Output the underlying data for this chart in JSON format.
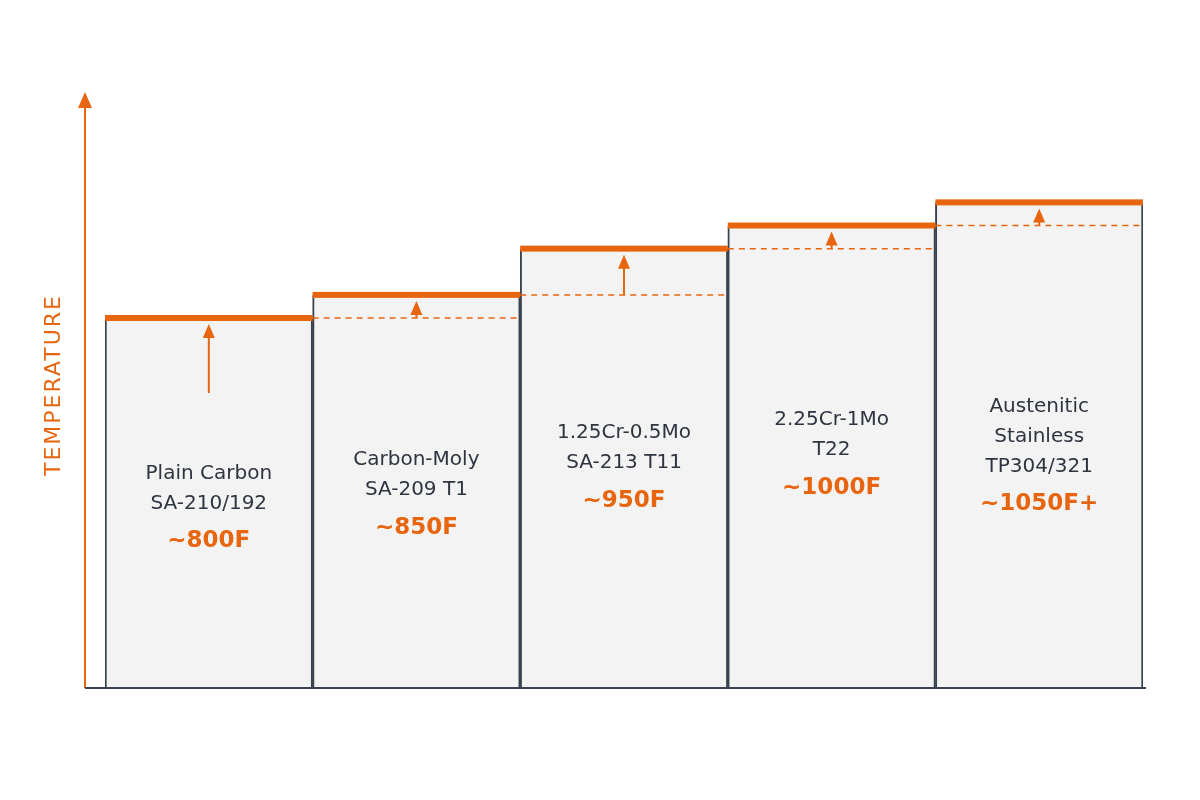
{
  "chart_data": {
    "type": "bar",
    "ylabel": "TEMPERATURE",
    "categories": [
      "Plain Carbon\nSA-210/192",
      "Carbon-Moly\nSA-209 T1",
      "1.25Cr-0.5Mo\nSA-213 T11",
      "2.25Cr-1Mo\nT22",
      "Austenitic\nStainless\nTP304/321"
    ],
    "values": [
      800,
      850,
      950,
      1000,
      1050
    ],
    "value_labels": [
      "~800F",
      "~850F",
      "~950F",
      "~1000F",
      "~1050F+"
    ],
    "tick_labels": false,
    "color": "#f3f3f3"
  }
}
